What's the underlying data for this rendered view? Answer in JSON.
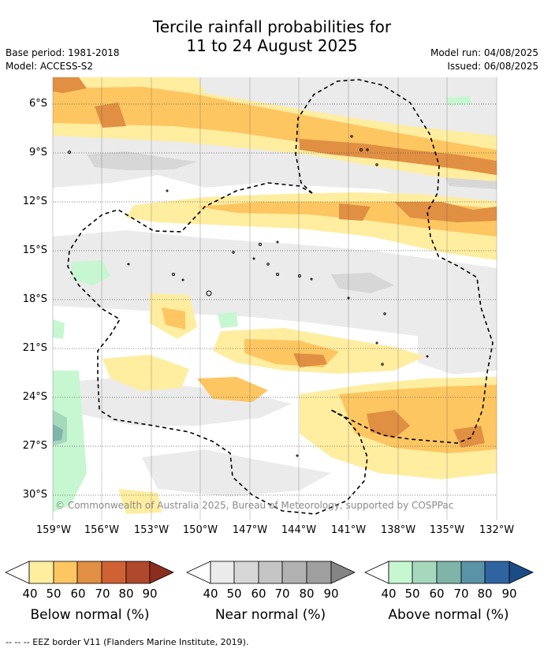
{
  "title": {
    "line1": "Tercile rainfall probabilities for",
    "line2": "11 to 24 August 2025"
  },
  "meta_left": {
    "base_period": "Base period: 1981-2018",
    "model": "Model: ACCESS-S2"
  },
  "meta_right": {
    "model_run": "Model run: 04/08/2025",
    "issued": "Issued: 06/08/2025"
  },
  "map": {
    "lat_labels": [
      "6°S",
      "9°S",
      "12°S",
      "15°S",
      "18°S",
      "21°S",
      "24°S",
      "27°S",
      "30°S"
    ],
    "lon_labels": [
      "159°W",
      "156°W",
      "153°W",
      "150°W",
      "147°W",
      "144°W",
      "141°W",
      "138°W",
      "135°W",
      "132°W"
    ],
    "copyright": "© Commonwealth of Australia 2025, Bureau of Meteorology, supported by COSPPac",
    "colors": {
      "ocean": "#ffffff",
      "gridline": "#555555",
      "eez_border": "#000000"
    }
  },
  "legends": [
    {
      "title": "Below normal (%)",
      "ticks": [
        "40",
        "50",
        "60",
        "70",
        "80",
        "90"
      ],
      "colors": [
        "#ffeda0",
        "#fdc661",
        "#e08f43",
        "#cf6233",
        "#b0482b",
        "#8c2e1d"
      ]
    },
    {
      "title": "Near normal (%)",
      "ticks": [
        "40",
        "50",
        "60",
        "70",
        "80",
        "90"
      ],
      "colors": [
        "#ebebeb",
        "#d7d7d7",
        "#c5c5c5",
        "#b2b2b2",
        "#9f9f9f",
        "#858585"
      ]
    },
    {
      "title": "Above normal (%)",
      "ticks": [
        "40",
        "50",
        "60",
        "70",
        "80",
        "90"
      ],
      "colors": [
        "#c7f7d0",
        "#a6d8bd",
        "#7fb5a9",
        "#5a93a6",
        "#2f64a0",
        "#1b4c85"
      ]
    }
  ],
  "footnote": "--  --  -- EEZ border V11 (Flanders Marine Institute, 2019)."
}
